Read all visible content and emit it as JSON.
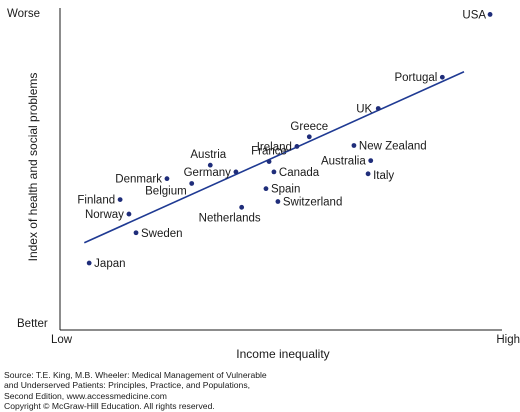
{
  "chart_data": {
    "type": "scatter",
    "xlabel": "Income inequality",
    "ylabel": "Index of health and social problems",
    "x_ends": {
      "low": "Low",
      "high": "High"
    },
    "y_ends": {
      "better": "Better",
      "worse": "Worse"
    },
    "xlim": [
      0,
      10
    ],
    "ylim": [
      0,
      10
    ],
    "grid": false,
    "legend": "none",
    "marker_color": "#1f2d7a",
    "line_color": "#1f3a93",
    "points": [
      {
        "label": "USA",
        "x": 9.73,
        "y": 9.8
      },
      {
        "label": "Portugal",
        "x": 8.65,
        "y": 7.85
      },
      {
        "label": "UK",
        "x": 7.2,
        "y": 6.88
      },
      {
        "label": "Greece",
        "x": 5.64,
        "y": 6.0
      },
      {
        "label": "New Zealand",
        "x": 6.65,
        "y": 5.73
      },
      {
        "label": "Ireland",
        "x": 5.36,
        "y": 5.7
      },
      {
        "label": "France",
        "x": 4.73,
        "y": 5.23
      },
      {
        "label": "Australia",
        "x": 7.03,
        "y": 5.26
      },
      {
        "label": "Austria",
        "x": 3.4,
        "y": 5.12
      },
      {
        "label": "Germany",
        "x": 3.98,
        "y": 4.91
      },
      {
        "label": "Canada",
        "x": 4.84,
        "y": 4.91
      },
      {
        "label": "Italy",
        "x": 6.97,
        "y": 4.85
      },
      {
        "label": "Denmark",
        "x": 2.42,
        "y": 4.7
      },
      {
        "label": "Belgium",
        "x": 2.98,
        "y": 4.55
      },
      {
        "label": "Spain",
        "x": 4.66,
        "y": 4.39
      },
      {
        "label": "Finland",
        "x": 1.36,
        "y": 4.05
      },
      {
        "label": "Switzerland",
        "x": 4.93,
        "y": 3.99
      },
      {
        "label": "Netherlands",
        "x": 4.11,
        "y": 3.81
      },
      {
        "label": "Norway",
        "x": 1.56,
        "y": 3.6
      },
      {
        "label": "Sweden",
        "x": 1.72,
        "y": 3.02
      },
      {
        "label": "Japan",
        "x": 0.66,
        "y": 2.08
      }
    ],
    "trend_line": {
      "x1": 0.55,
      "y1": 2.71,
      "x2": 9.14,
      "y2": 8.02
    }
  },
  "source_note": [
    "Source: T.E. King, M.B. Wheeler: Medical Management of Vulnerable",
    "and Underserved Patients: Principles, Practice, and Populations,",
    "Second Edition, www.accessmedicine.com",
    "Copyright © McGraw-Hill Education. All rights reserved."
  ]
}
